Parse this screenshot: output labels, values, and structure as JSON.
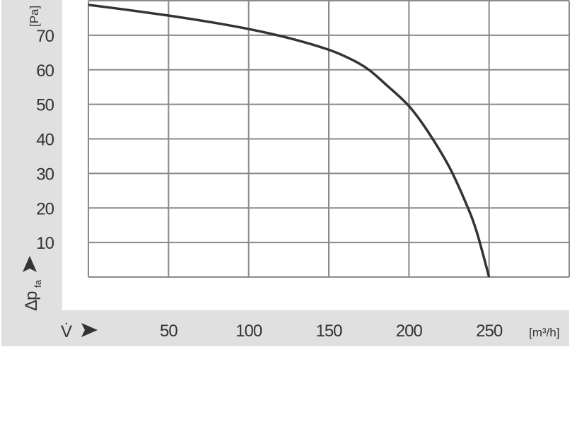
{
  "chart_data": {
    "type": "line",
    "title": "",
    "xlabel": "V̇",
    "xunit": "[m³/h]",
    "ylabel": "Δp",
    "ylabel_sub": "fa",
    "yunit": "[Pa]",
    "xlim": [
      0,
      300
    ],
    "ylim": [
      0,
      80
    ],
    "x_ticks": [
      50,
      100,
      150,
      200,
      250
    ],
    "y_ticks": [
      10,
      20,
      30,
      40,
      50,
      60,
      70
    ],
    "x_grid": [
      0,
      50,
      100,
      150,
      200,
      250,
      300
    ],
    "y_grid": [
      0,
      10,
      20,
      30,
      40,
      50,
      60,
      70,
      80
    ],
    "grid": true,
    "series": [
      {
        "x": [
          0,
          25,
          50,
          75,
          100,
          125,
          150,
          165,
          175,
          185,
          200,
          212,
          225,
          235,
          242,
          250
        ],
        "y": [
          78.8,
          77.3,
          75.7,
          73.9,
          71.8,
          69.2,
          65.8,
          62.8,
          60.0,
          56.0,
          49.5,
          42.0,
          32.0,
          22.0,
          13.5,
          0
        ],
        "color": "#333333"
      }
    ],
    "colors": {
      "background_band": "#e0e0e0",
      "grid": "#8a8a8a",
      "curve": "#333333",
      "text": "#333333"
    }
  }
}
